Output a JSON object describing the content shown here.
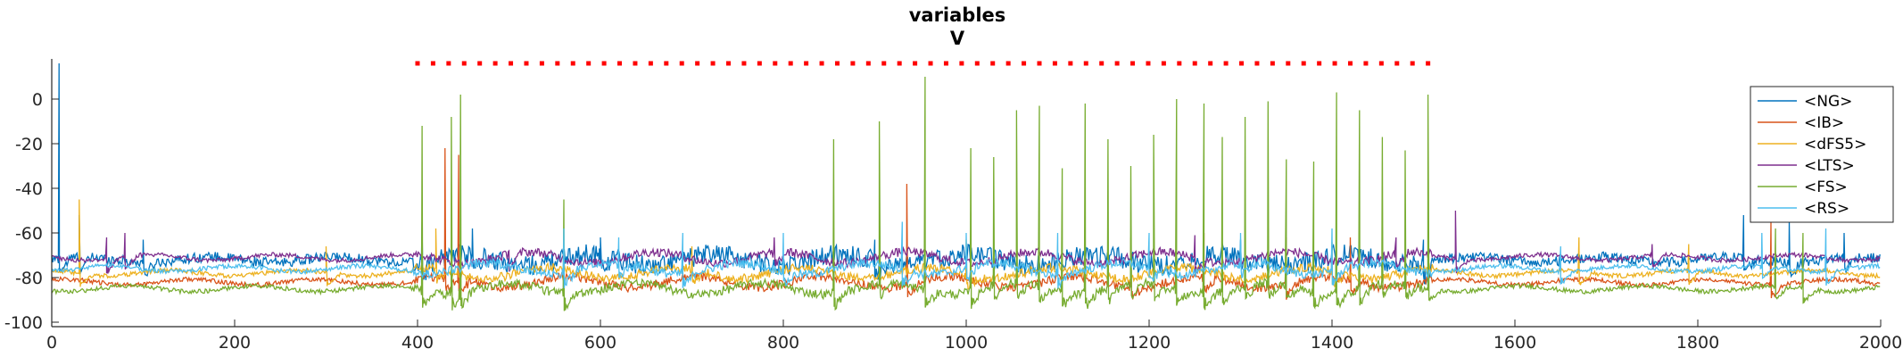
{
  "chart_data": {
    "type": "line",
    "title": "variables",
    "subtitle": "V",
    "xlabel": "",
    "ylabel": "",
    "xlim": [
      0,
      2000
    ],
    "ylim": [
      -102,
      18
    ],
    "xticks": [
      0,
      200,
      400,
      600,
      800,
      1000,
      1200,
      1400,
      1600,
      1800,
      2000
    ],
    "yticks": [
      0,
      -20,
      -40,
      -60,
      -80,
      -100
    ],
    "grid": false,
    "legend_position": "top-right",
    "stimulus_markers": {
      "color": "#ff0000",
      "y": 16,
      "x_start": 400,
      "x_end": 1505,
      "spacing": 17
    },
    "series": [
      {
        "name": "<NG>",
        "color": "#0072BD",
        "baseline": -72,
        "spikes": [
          [
            8,
            16
          ],
          [
            30,
            -52
          ],
          [
            100,
            -63
          ],
          [
            405,
            -55
          ],
          [
            460,
            -58
          ],
          [
            600,
            -62
          ],
          [
            900,
            -63
          ],
          [
            1300,
            -63
          ],
          [
            1500,
            -63
          ],
          [
            1850,
            -52
          ],
          [
            1900,
            -55
          ],
          [
            1960,
            -60
          ]
        ]
      },
      {
        "name": "<IB>",
        "color": "#D95319",
        "baseline": -82,
        "spikes": [
          [
            430,
            -22
          ],
          [
            445,
            -25
          ],
          [
            935,
            -38
          ],
          [
            1180,
            -62
          ],
          [
            1260,
            -60
          ],
          [
            1350,
            -62
          ],
          [
            1420,
            -62
          ],
          [
            1880,
            -55
          ]
        ]
      },
      {
        "name": "<dFS5>",
        "color": "#EDB120",
        "baseline": -78,
        "spikes": [
          [
            30,
            -45
          ],
          [
            300,
            -66
          ],
          [
            420,
            -58
          ],
          [
            700,
            -66
          ],
          [
            1000,
            -63
          ],
          [
            1400,
            -64
          ],
          [
            1670,
            -62
          ],
          [
            1790,
            -65
          ]
        ]
      },
      {
        "name": "<LTS>",
        "color": "#7E2F8E",
        "baseline": -71,
        "spikes": [
          [
            60,
            -62
          ],
          [
            80,
            -60
          ],
          [
            500,
            -68
          ],
          [
            790,
            -62
          ],
          [
            1250,
            -61
          ],
          [
            1470,
            -62
          ],
          [
            1535,
            -50
          ],
          [
            1750,
            -65
          ]
        ]
      },
      {
        "name": "<FS>",
        "color": "#77AC30",
        "baseline": -85,
        "spikes": [
          [
            405,
            -12
          ],
          [
            437,
            -8
          ],
          [
            447,
            2
          ],
          [
            560,
            -45
          ],
          [
            855,
            -18
          ],
          [
            905,
            -10
          ],
          [
            955,
            10
          ],
          [
            1005,
            -22
          ],
          [
            1030,
            -26
          ],
          [
            1055,
            -5
          ],
          [
            1080,
            -3
          ],
          [
            1105,
            -31
          ],
          [
            1130,
            -2
          ],
          [
            1155,
            -18
          ],
          [
            1180,
            -30
          ],
          [
            1205,
            -16
          ],
          [
            1230,
            0
          ],
          [
            1260,
            -2
          ],
          [
            1280,
            -17
          ],
          [
            1305,
            -8
          ],
          [
            1330,
            -1
          ],
          [
            1350,
            -27
          ],
          [
            1380,
            -28
          ],
          [
            1405,
            3
          ],
          [
            1430,
            -5
          ],
          [
            1455,
            -17
          ],
          [
            1480,
            -23
          ],
          [
            1505,
            2
          ],
          [
            1885,
            -58
          ],
          [
            1915,
            -60
          ]
        ]
      },
      {
        "name": "<RS>",
        "color": "#4DBEEE",
        "baseline": -76,
        "spikes": [
          [
            560,
            -58
          ],
          [
            620,
            -62
          ],
          [
            690,
            -60
          ],
          [
            800,
            -60
          ],
          [
            930,
            -55
          ],
          [
            1000,
            -60
          ],
          [
            1100,
            -60
          ],
          [
            1200,
            -60
          ],
          [
            1300,
            -60
          ],
          [
            1400,
            -58
          ],
          [
            1650,
            -66
          ],
          [
            1870,
            -60
          ],
          [
            1940,
            -58
          ]
        ]
      }
    ]
  }
}
